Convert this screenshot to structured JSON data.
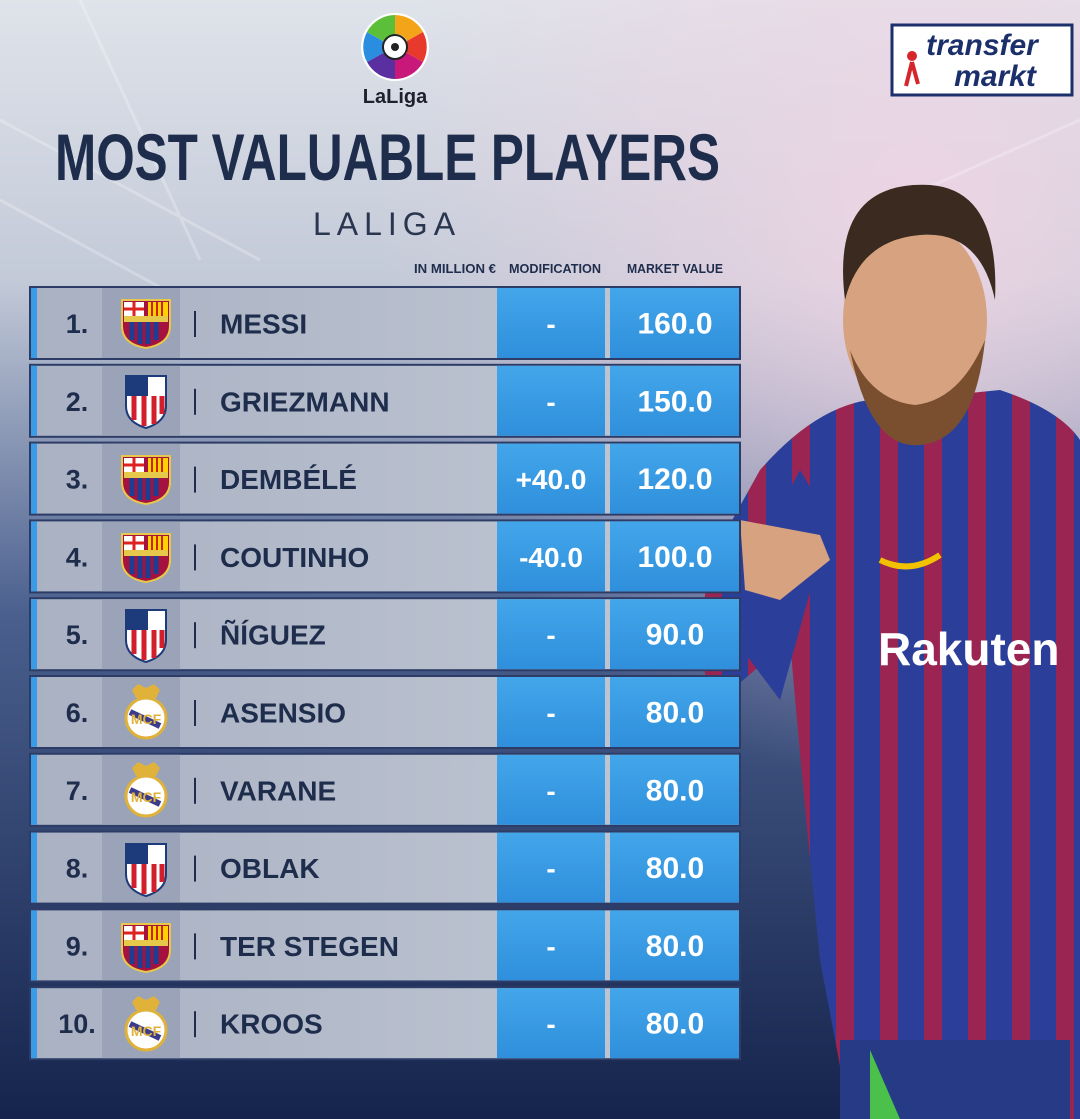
{
  "logo": {
    "text": "LaLiga"
  },
  "brand": {
    "line1": "transfer",
    "line2": "markt"
  },
  "header": {
    "title": "MOST VALUABLE PLAYERS",
    "subtitle": "LALIGA"
  },
  "table": {
    "columns": [
      "IN MILLION €",
      "MODIFICATION",
      "MARKET VALUE"
    ],
    "rows": [
      [
        "1.",
        "MESSI",
        "-",
        "160.0"
      ],
      [
        "2.",
        "GRIEZMANN",
        "-",
        "150.0"
      ],
      [
        "3.",
        "DEMBÉLÉ",
        "+40.0",
        "120.0"
      ],
      [
        "4.",
        "COUTINHO",
        "-40.0",
        "100.0"
      ],
      [
        "5.",
        "ÑÍGUEZ",
        "-",
        "90.0"
      ],
      [
        "6.",
        "ASENSIO",
        "-",
        "80.0"
      ],
      [
        "7.",
        "VARANE",
        "-",
        "80.0"
      ],
      [
        "8.",
        "OBLAK",
        "-",
        "80.0"
      ],
      [
        "9.",
        "TER STEGEN",
        "-",
        "80.0"
      ],
      [
        "10.",
        "KROOS",
        "-",
        "80.0"
      ]
    ]
  }
}
